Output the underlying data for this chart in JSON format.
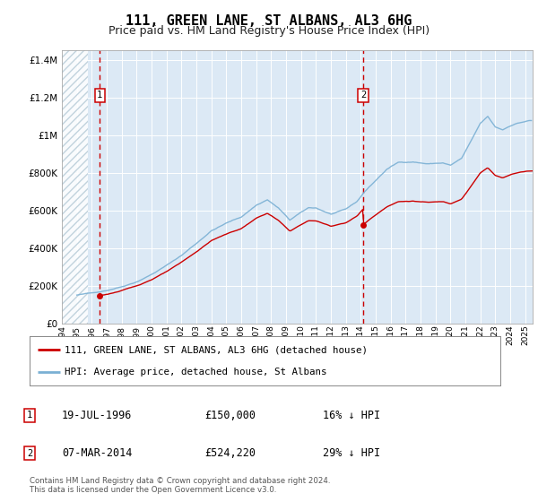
{
  "title": "111, GREEN LANE, ST ALBANS, AL3 6HG",
  "subtitle": "Price paid vs. HM Land Registry's House Price Index (HPI)",
  "title_fontsize": 11,
  "subtitle_fontsize": 9,
  "background_color": "#dce9f5",
  "red_color": "#cc0000",
  "blue_color": "#7ab0d4",
  "ylim": [
    0,
    1450000
  ],
  "xlim_start": 1994.0,
  "xlim_end": 2025.5,
  "sale1_x": 1996.54,
  "sale1_y": 150000,
  "sale2_x": 2014.17,
  "sale2_y": 524220,
  "legend_label1": "111, GREEN LANE, ST ALBANS, AL3 6HG (detached house)",
  "legend_label2": "HPI: Average price, detached house, St Albans",
  "annot1_date": "19-JUL-1996",
  "annot1_price": "£150,000",
  "annot1_hpi": "16% ↓ HPI",
  "annot2_date": "07-MAR-2014",
  "annot2_price": "£524,220",
  "annot2_hpi": "29% ↓ HPI",
  "footer": "Contains HM Land Registry data © Crown copyright and database right 2024.\nThis data is licensed under the Open Government Licence v3.0.",
  "yticks": [
    0,
    200000,
    400000,
    600000,
    800000,
    1000000,
    1200000,
    1400000
  ],
  "ytick_labels": [
    "£0",
    "£200K",
    "£400K",
    "£600K",
    "£800K",
    "£1M",
    "£1.2M",
    "£1.4M"
  ],
  "xticks": [
    1994,
    1995,
    1996,
    1997,
    1998,
    1999,
    2000,
    2001,
    2002,
    2003,
    2004,
    2005,
    2006,
    2007,
    2008,
    2009,
    2010,
    2011,
    2012,
    2013,
    2014,
    2015,
    2016,
    2017,
    2018,
    2019,
    2020,
    2021,
    2022,
    2023,
    2024,
    2025
  ],
  "grid_color": "#ffffff",
  "grid_linewidth": 0.7,
  "hatch_end": 1995.75
}
